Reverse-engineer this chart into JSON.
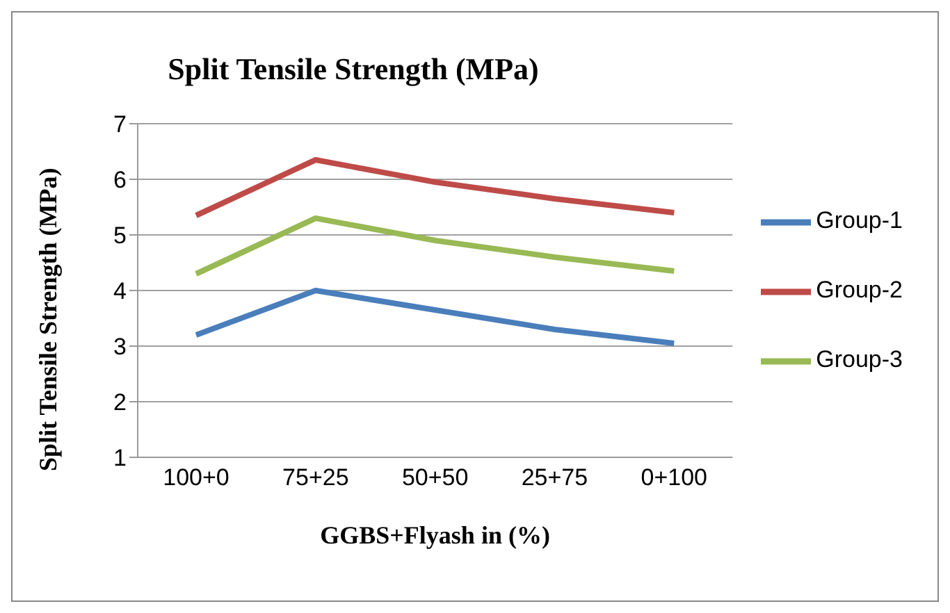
{
  "chart_data": {
    "type": "line",
    "title": "Split Tensile Strength (MPa)",
    "xlabel": "GGBS+Flyash in (%)",
    "ylabel": "Split Tensile Strength (MPa)",
    "categories": [
      "100+0",
      "75+25",
      "50+50",
      "25+75",
      "0+100"
    ],
    "series": [
      {
        "name": "Group-1",
        "color": "#4a7ebb",
        "values": [
          3.2,
          4.0,
          3.65,
          3.3,
          3.05
        ]
      },
      {
        "name": "Group-2",
        "color": "#be4b48",
        "values": [
          5.35,
          6.35,
          5.95,
          5.65,
          5.4
        ]
      },
      {
        "name": "Group-3",
        "color": "#98b954",
        "values": [
          4.3,
          5.3,
          4.9,
          4.6,
          4.35
        ]
      }
    ],
    "ylim": [
      1,
      7
    ],
    "yticks": [
      1,
      2,
      3,
      4,
      5,
      6,
      7
    ],
    "grid": "y",
    "legend": "right",
    "marker": "none",
    "line_style": "solid"
  }
}
